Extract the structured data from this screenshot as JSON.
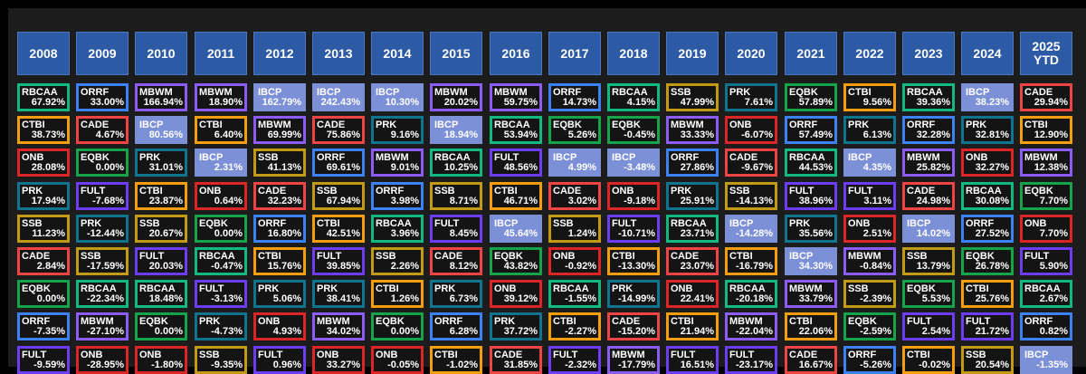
{
  "chart_data": {
    "type": "table",
    "highlight_ticker": "IBCP",
    "colors": {
      "ORRF": "#3b82f6",
      "MBWM": "#8b5cf6",
      "IBCP": "#7c90d8",
      "PRK": "#0e7490",
      "RBCAA": "#10b981",
      "SSB": "#c49a14",
      "CTBI": "#f59e0b",
      "CADE": "#ef4444",
      "ONB": "#dc2626",
      "EQBK": "#16a34a",
      "FULT": "#6d3df5"
    },
    "columns": [
      {
        "year": "2008",
        "cells": [
          [
            "RBCAA",
            "67.92%"
          ],
          [
            "CTBI",
            "38.73%"
          ],
          [
            "ONB",
            "28.08%"
          ],
          [
            "PRK",
            "17.94%"
          ],
          [
            "SSB",
            "11.23%"
          ],
          [
            "CADE",
            "2.84%"
          ],
          [
            "EQBK",
            "0.00%"
          ],
          [
            "ORRF",
            "-7.35%"
          ],
          [
            "FULT",
            "-9.59%"
          ]
        ]
      },
      {
        "year": "2009",
        "cells": [
          [
            "ORRF",
            "33.00%"
          ],
          [
            "CADE",
            "4.67%"
          ],
          [
            "EQBK",
            "0.00%"
          ],
          [
            "FULT",
            "-7.68%"
          ],
          [
            "PRK",
            "-12.44%"
          ],
          [
            "SSB",
            "-17.59%"
          ],
          [
            "RBCAA",
            "-22.34%"
          ],
          [
            "MBWM",
            "-27.10%"
          ],
          [
            "ONB",
            "-28.95%"
          ]
        ]
      },
      {
        "year": "2010",
        "cells": [
          [
            "MBWM",
            "166.94%"
          ],
          [
            "IBCP",
            "80.56%"
          ],
          [
            "PRK",
            "31.01%"
          ],
          [
            "CTBI",
            "23.87%"
          ],
          [
            "SSB",
            "20.67%"
          ],
          [
            "FULT",
            "20.03%"
          ],
          [
            "RBCAA",
            "18.48%"
          ],
          [
            "EQBK",
            "0.00%"
          ],
          [
            "ONB",
            "-1.80%"
          ]
        ]
      },
      {
        "year": "2011",
        "cells": [
          [
            "MBWM",
            "18.90%"
          ],
          [
            "CTBI",
            "6.40%"
          ],
          [
            "IBCP",
            "2.31%"
          ],
          [
            "ONB",
            "0.64%"
          ],
          [
            "EQBK",
            "0.00%"
          ],
          [
            "RBCAA",
            "-0.47%"
          ],
          [
            "FULT",
            "-3.13%"
          ],
          [
            "PRK",
            "-4.73%"
          ],
          [
            "SSB",
            "-9.35%"
          ]
        ]
      },
      {
        "year": "2012",
        "cells": [
          [
            "IBCP",
            "162.79%"
          ],
          [
            "MBWM",
            "69.99%"
          ],
          [
            "SSB",
            "41.13%"
          ],
          [
            "CADE",
            "32.23%"
          ],
          [
            "ORRF",
            "16.80%"
          ],
          [
            "CTBI",
            "15.76%"
          ],
          [
            "PRK",
            "5.06%"
          ],
          [
            "ONB",
            "4.93%"
          ],
          [
            "FULT",
            "0.96%"
          ]
        ]
      },
      {
        "year": "2013",
        "cells": [
          [
            "IBCP",
            "242.43%"
          ],
          [
            "CADE",
            "75.86%"
          ],
          [
            "ORRF",
            "69.61%"
          ],
          [
            "SSB",
            "67.94%"
          ],
          [
            "CTBI",
            "42.51%"
          ],
          [
            "FULT",
            "39.85%"
          ],
          [
            "PRK",
            "38.41%"
          ],
          [
            "MBWM",
            "34.02%"
          ],
          [
            "ONB",
            "33.27%"
          ]
        ]
      },
      {
        "year": "2014",
        "cells": [
          [
            "IBCP",
            "10.30%"
          ],
          [
            "PRK",
            "9.16%"
          ],
          [
            "MBWM",
            "9.01%"
          ],
          [
            "ORRF",
            "3.98%"
          ],
          [
            "RBCAA",
            "3.96%"
          ],
          [
            "SSB",
            "2.26%"
          ],
          [
            "CTBI",
            "1.26%"
          ],
          [
            "EQBK",
            "0.00%"
          ],
          [
            "ONB",
            "-0.05%"
          ]
        ]
      },
      {
        "year": "2015",
        "cells": [
          [
            "MBWM",
            "20.02%"
          ],
          [
            "IBCP",
            "18.94%"
          ],
          [
            "RBCAA",
            "10.25%"
          ],
          [
            "SSB",
            "8.71%"
          ],
          [
            "FULT",
            "8.45%"
          ],
          [
            "CADE",
            "8.12%"
          ],
          [
            "PRK",
            "6.73%"
          ],
          [
            "ORRF",
            "6.28%"
          ],
          [
            "CTBI",
            "-1.02%"
          ]
        ]
      },
      {
        "year": "2016",
        "cells": [
          [
            "MBWM",
            "59.75%"
          ],
          [
            "RBCAA",
            "53.94%"
          ],
          [
            "FULT",
            "48.56%"
          ],
          [
            "CTBI",
            "46.71%"
          ],
          [
            "IBCP",
            "45.64%"
          ],
          [
            "EQBK",
            "43.82%"
          ],
          [
            "ONB",
            "39.12%"
          ],
          [
            "PRK",
            "37.72%"
          ],
          [
            "CADE",
            "31.85%"
          ]
        ]
      },
      {
        "year": "2017",
        "cells": [
          [
            "ORRF",
            "14.73%"
          ],
          [
            "EQBK",
            "5.26%"
          ],
          [
            "IBCP",
            "4.99%"
          ],
          [
            "CADE",
            "3.02%"
          ],
          [
            "SSB",
            "1.24%"
          ],
          [
            "ONB",
            "-0.92%"
          ],
          [
            "RBCAA",
            "-1.55%"
          ],
          [
            "CTBI",
            "-2.27%"
          ],
          [
            "FULT",
            "-2.32%"
          ]
        ]
      },
      {
        "year": "2018",
        "cells": [
          [
            "RBCAA",
            "4.15%"
          ],
          [
            "EQBK",
            "-0.45%"
          ],
          [
            "IBCP",
            "-3.48%"
          ],
          [
            "ONB",
            "-9.18%"
          ],
          [
            "FULT",
            "-10.71%"
          ],
          [
            "CTBI",
            "-13.30%"
          ],
          [
            "PRK",
            "-14.99%"
          ],
          [
            "CADE",
            "-15.20%"
          ],
          [
            "MBWM",
            "-17.79%"
          ]
        ]
      },
      {
        "year": "2019",
        "cells": [
          [
            "SSB",
            "47.99%"
          ],
          [
            "MBWM",
            "33.33%"
          ],
          [
            "ORRF",
            "27.86%"
          ],
          [
            "PRK",
            "25.91%"
          ],
          [
            "RBCAA",
            "23.71%"
          ],
          [
            "CADE",
            "23.07%"
          ],
          [
            "ONB",
            "22.41%"
          ],
          [
            "CTBI",
            "21.94%"
          ],
          [
            "FULT",
            "16.51%"
          ]
        ]
      },
      {
        "year": "2020",
        "cells": [
          [
            "PRK",
            "7.61%"
          ],
          [
            "ONB",
            "-6.07%"
          ],
          [
            "CADE",
            "-9.67%"
          ],
          [
            "SSB",
            "-14.13%"
          ],
          [
            "IBCP",
            "-14.28%"
          ],
          [
            "CTBI",
            "-16.79%"
          ],
          [
            "RBCAA",
            "-20.18%"
          ],
          [
            "MBWM",
            "-22.04%"
          ],
          [
            "FULT",
            "-23.17%"
          ]
        ]
      },
      {
        "year": "2021",
        "cells": [
          [
            "EQBK",
            "57.89%"
          ],
          [
            "ORRF",
            "57.49%"
          ],
          [
            "RBCAA",
            "44.53%"
          ],
          [
            "FULT",
            "38.96%"
          ],
          [
            "PRK",
            "35.56%"
          ],
          [
            "IBCP",
            "34.30%"
          ],
          [
            "MBWM",
            "33.79%"
          ],
          [
            "CTBI",
            "22.06%"
          ],
          [
            "CADE",
            "16.67%"
          ]
        ]
      },
      {
        "year": "2022",
        "cells": [
          [
            "CTBI",
            "9.56%"
          ],
          [
            "PRK",
            "6.13%"
          ],
          [
            "IBCP",
            "4.35%"
          ],
          [
            "FULT",
            "3.11%"
          ],
          [
            "ONB",
            "2.51%"
          ],
          [
            "MBWM",
            "-0.84%"
          ],
          [
            "SSB",
            "-2.39%"
          ],
          [
            "EQBK",
            "-2.59%"
          ],
          [
            "ORRF",
            "-5.26%"
          ]
        ]
      },
      {
        "year": "2023",
        "cells": [
          [
            "RBCAA",
            "39.36%"
          ],
          [
            "ORRF",
            "32.28%"
          ],
          [
            "MBWM",
            "25.82%"
          ],
          [
            "CADE",
            "24.98%"
          ],
          [
            "IBCP",
            "14.02%"
          ],
          [
            "SSB",
            "13.79%"
          ],
          [
            "EQBK",
            "5.53%"
          ],
          [
            "FULT",
            "2.54%"
          ],
          [
            "CTBI",
            "-0.02%"
          ]
        ]
      },
      {
        "year": "2024",
        "cells": [
          [
            "IBCP",
            "38.23%"
          ],
          [
            "PRK",
            "32.81%"
          ],
          [
            "ONB",
            "32.27%"
          ],
          [
            "RBCAA",
            "30.08%"
          ],
          [
            "ORRF",
            "27.52%"
          ],
          [
            "EQBK",
            "26.78%"
          ],
          [
            "CTBI",
            "25.76%"
          ],
          [
            "FULT",
            "21.72%"
          ],
          [
            "SSB",
            "20.54%"
          ]
        ]
      },
      {
        "year": "2025\nYTD",
        "cells": [
          [
            "CADE",
            "29.94%"
          ],
          [
            "CTBI",
            "12.90%"
          ],
          [
            "MBWM",
            "12.38%"
          ],
          [
            "EQBK",
            "7.70%"
          ],
          [
            "ONB",
            "7.70%"
          ],
          [
            "FULT",
            "5.90%"
          ],
          [
            "RBCAA",
            "2.67%"
          ],
          [
            "ORRF",
            "0.82%"
          ],
          [
            "IBCP",
            "-1.35%"
          ]
        ]
      }
    ]
  }
}
